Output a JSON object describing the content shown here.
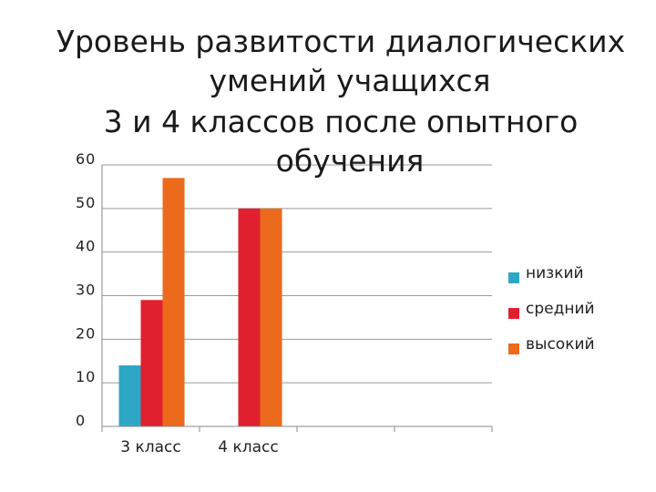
{
  "chart_data": {
    "type": "bar",
    "title_lines": [
      "Уровень развитости диалогических",
      "умений учащихся",
      "3 и 4 классов после опытного",
      "обучения"
    ],
    "categories": [
      "3 класс",
      "4 класс",
      "",
      ""
    ],
    "series": [
      {
        "name": "низкий",
        "color": "#2ea6c6",
        "values": [
          14,
          0,
          0,
          0
        ]
      },
      {
        "name": "средний",
        "color": "#e0202e",
        "values": [
          29,
          50,
          0,
          0
        ]
      },
      {
        "name": "высокий",
        "color": "#eb6a1c",
        "values": [
          57,
          50,
          0,
          0
        ]
      }
    ],
    "ylim": [
      0,
      60
    ],
    "yticks": [
      0,
      10,
      20,
      30,
      40,
      50,
      60
    ],
    "ytick_labels": [
      "0",
      "10",
      "20",
      "30",
      "40",
      "50",
      "60"
    ],
    "grid": true,
    "legend_position": "right",
    "xlabel": "",
    "ylabel": ""
  }
}
